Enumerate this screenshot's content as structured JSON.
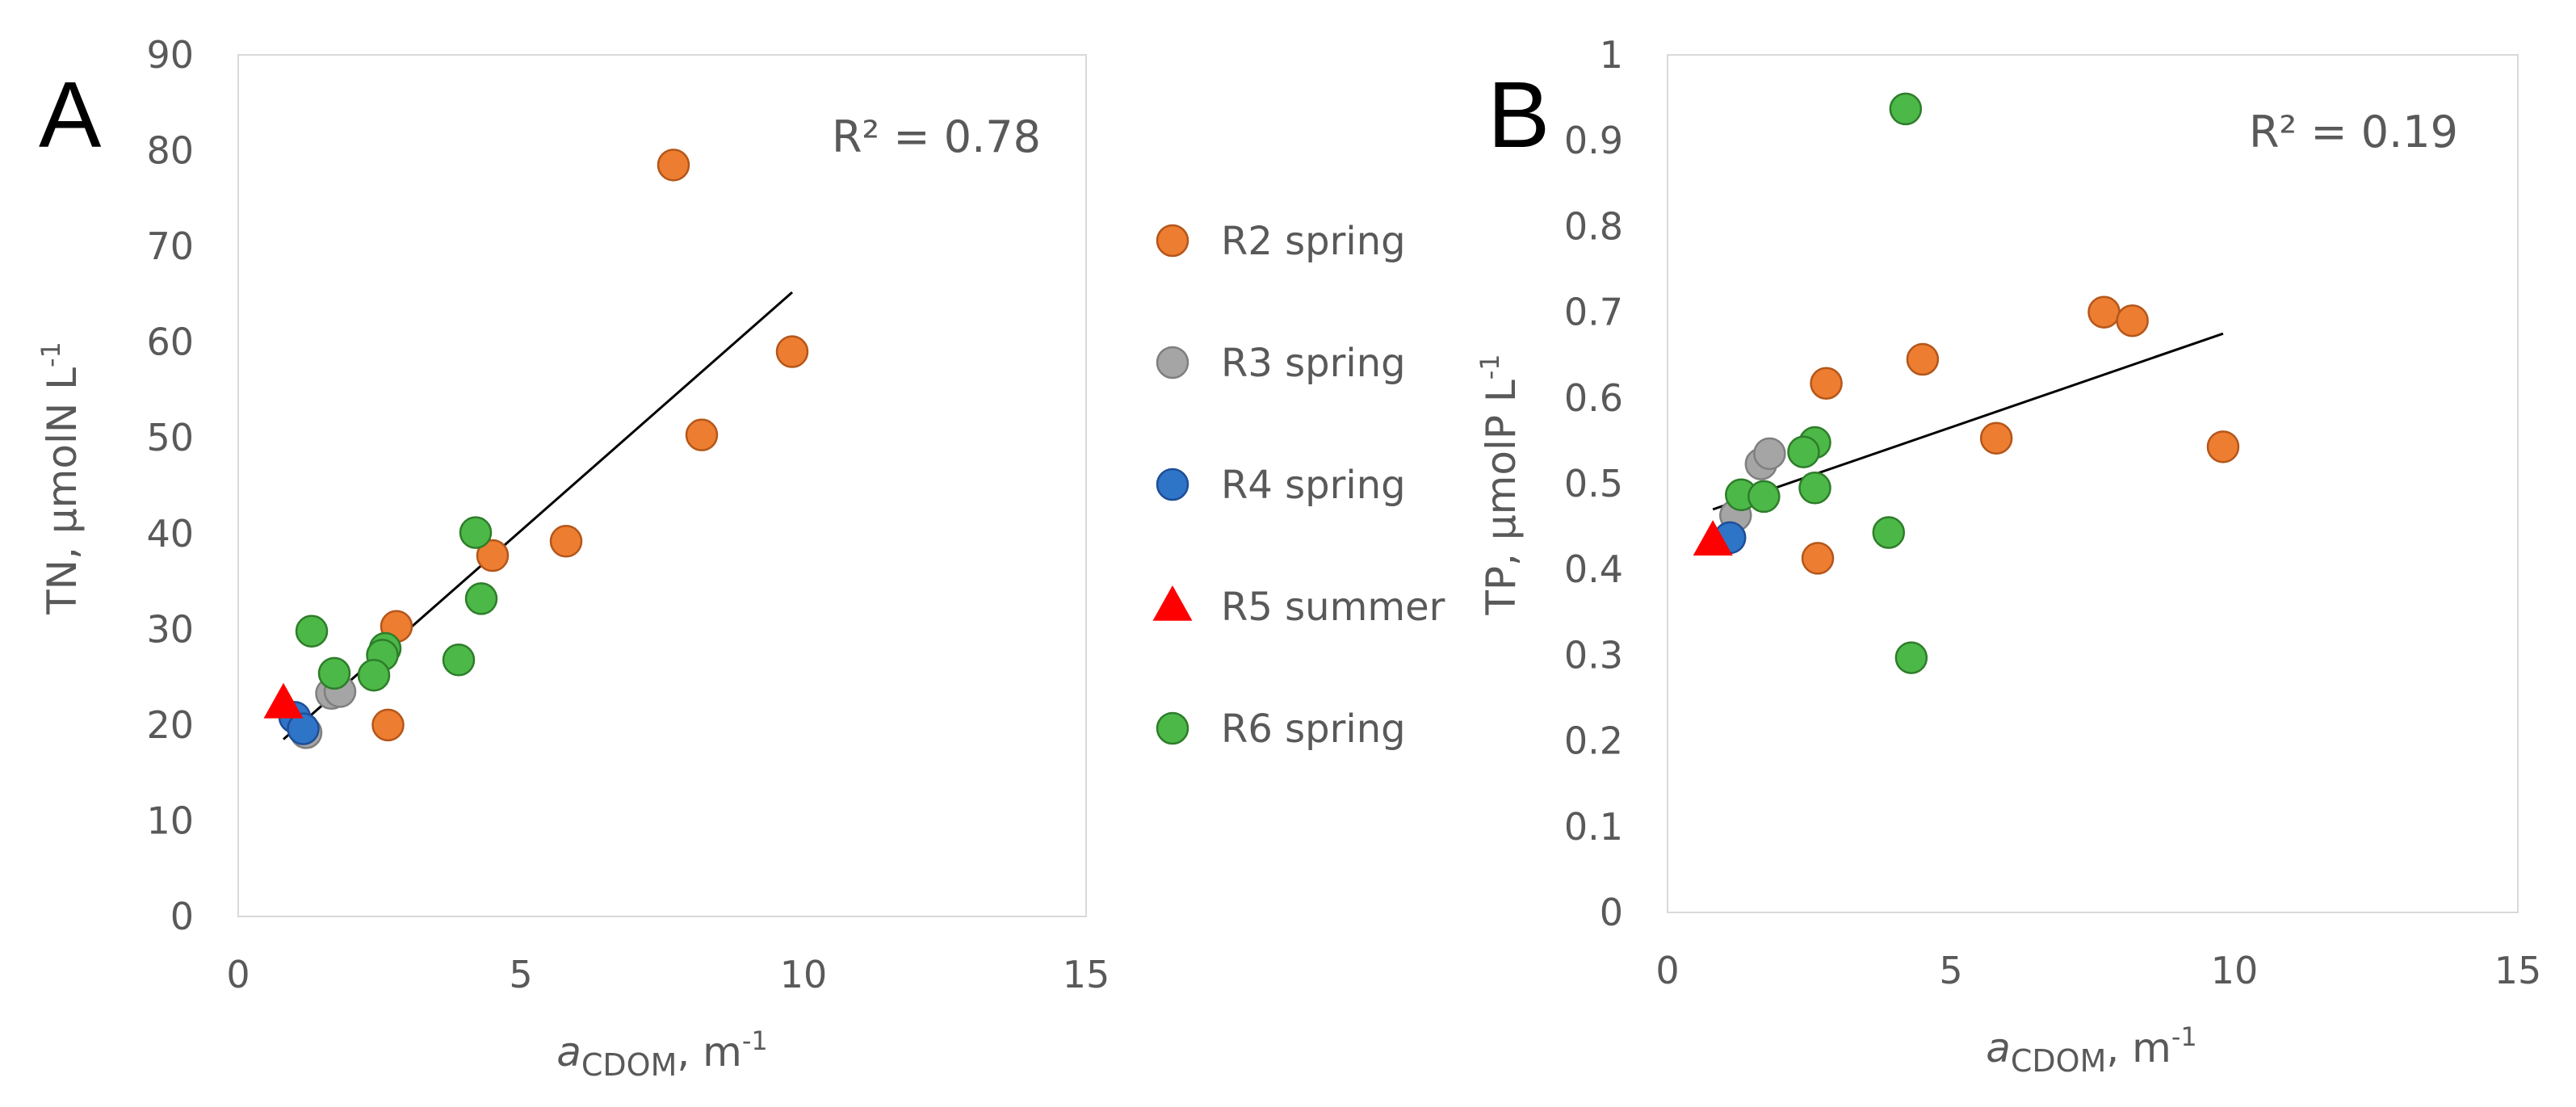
{
  "colors": {
    "R2 spring": {
      "fill": "#ED7D31",
      "stroke": "#B4561A"
    },
    "R3 spring": {
      "fill": "#A5A5A5",
      "stroke": "#7F7F7F"
    },
    "R4 spring": {
      "fill": "#2E75C8",
      "stroke": "#1F4E96"
    },
    "R5 summer": {
      "fill": "#FF0000",
      "stroke": "#FF0000"
    },
    "R6 spring": {
      "fill": "#4CB848",
      "stroke": "#2E7D2A"
    }
  },
  "legend": {
    "items": [
      {
        "label": "R2 spring",
        "marker": "circle"
      },
      {
        "label": "R3 spring",
        "marker": "circle"
      },
      {
        "label": "R4 spring",
        "marker": "circle"
      },
      {
        "label": "R5 summer",
        "marker": "triangle"
      },
      {
        "label": "R6 spring",
        "marker": "circle"
      }
    ]
  },
  "chart_data": [
    {
      "type": "scatter",
      "panel_label": "A",
      "annotation": "R² = 0.78",
      "ylabel_main": "TN, µmolN L",
      "ylabel_sup": "-1",
      "xlabel_italic": "a",
      "xlabel_sub": "CDOM",
      "xlabel_rest": ", m",
      "xlabel_sup": "-1",
      "xlim": [
        0,
        15
      ],
      "ylim": [
        0,
        90
      ],
      "xticks": [
        "0",
        "5",
        "10",
        "15"
      ],
      "yticks": [
        "0",
        "10",
        "20",
        "30",
        "40",
        "50",
        "60",
        "70",
        "80",
        "90"
      ],
      "trendline": {
        "x": [
          0.8,
          9.8
        ],
        "y": [
          18.5,
          65.2
        ]
      },
      "series": [
        {
          "name": "R2 spring",
          "x": [
            7.7,
            9.8,
            8.2,
            5.8,
            4.5,
            2.8,
            2.65
          ],
          "y": [
            78.5,
            59,
            50.3,
            39.2,
            37.7,
            30.3,
            20
          ]
        },
        {
          "name": "R3 spring",
          "x": [
            1.2,
            1.65,
            1.8
          ],
          "y": [
            19.2,
            23.3,
            23.5
          ]
        },
        {
          "name": "R4 spring",
          "x": [
            1.0,
            1.15
          ],
          "y": [
            20.8,
            19.6
          ]
        },
        {
          "name": "R5 summer",
          "x": [
            0.8
          ],
          "y": [
            22.2
          ]
        },
        {
          "name": "R6 spring",
          "x": [
            4.2,
            4.3,
            1.3,
            3.9,
            2.6,
            2.55,
            1.7,
            2.4
          ],
          "y": [
            40.1,
            33.2,
            29.8,
            26.8,
            28.0,
            27.3,
            25.4,
            25.2
          ]
        }
      ]
    },
    {
      "type": "scatter",
      "panel_label": "B",
      "annotation": "R² = 0.19",
      "ylabel_main": "TP, µmolP L",
      "ylabel_sup": "-1",
      "xlabel_italic": "a",
      "xlabel_sub": "CDOM",
      "xlabel_rest": ", m",
      "xlabel_sup": "-1",
      "xlim": [
        0,
        15
      ],
      "ylim": [
        0,
        1
      ],
      "xticks": [
        "0",
        "5",
        "10",
        "15"
      ],
      "yticks": [
        "0",
        "0.1",
        "0.2",
        "0.3",
        "0.4",
        "0.5",
        "0.6",
        "0.7",
        "0.8",
        "0.9",
        "1"
      ],
      "trendline": {
        "x": [
          0.8,
          9.8
        ],
        "y": [
          0.47,
          0.675
        ]
      },
      "series": [
        {
          "name": "R2 spring",
          "x": [
            7.7,
            8.2,
            4.5,
            2.8,
            5.8,
            9.8,
            2.65
          ],
          "y": [
            0.7,
            0.69,
            0.645,
            0.617,
            0.553,
            0.543,
            0.413
          ]
        },
        {
          "name": "R3 spring",
          "x": [
            1.2,
            1.65,
            1.8
          ],
          "y": [
            0.463,
            0.523,
            0.535
          ]
        },
        {
          "name": "R4 spring",
          "x": [
            1.1
          ],
          "y": [
            0.437
          ]
        },
        {
          "name": "R5 summer",
          "x": [
            0.8
          ],
          "y": [
            0.433
          ]
        },
        {
          "name": "R6 spring",
          "x": [
            4.2,
            2.6,
            2.4,
            2.6,
            1.3,
            1.7,
            3.9,
            4.3
          ],
          "y": [
            0.937,
            0.548,
            0.537,
            0.495,
            0.487,
            0.485,
            0.443,
            0.297
          ]
        }
      ]
    }
  ]
}
